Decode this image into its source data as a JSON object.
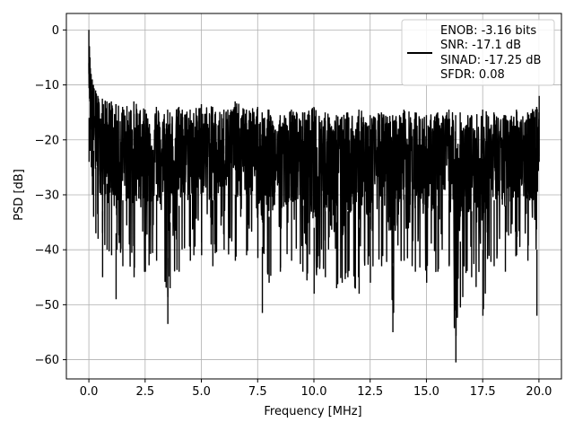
{
  "chart_data": {
    "type": "line",
    "xlabel": "Frequency [MHz]",
    "ylabel": "PSD [dB]",
    "xlim": [
      -1.0,
      21.0
    ],
    "ylim": [
      -63.5,
      3.0
    ],
    "x_ticks": [
      0.0,
      2.5,
      5.0,
      7.5,
      10.0,
      12.5,
      15.0,
      17.5,
      20.0
    ],
    "x_tick_labels": [
      "0.0",
      "2.5",
      "5.0",
      "7.5",
      "10.0",
      "12.5",
      "15.0",
      "17.5",
      "20.0"
    ],
    "y_ticks": [
      0,
      -10,
      -20,
      -30,
      -40,
      -50,
      -60
    ],
    "y_tick_labels": [
      "0",
      "−10",
      "−20",
      "−30",
      "−40",
      "−50",
      "−60"
    ],
    "grid": true,
    "legend_position": "top-right",
    "series": [
      {
        "color": "#000000",
        "description": "Noisy power spectral density trace from 0 to 20 MHz: peak near 0 dB at 0 MHz, dropping quickly to about -10 dB, then a dense noise band mostly between about -15 and -35 dB across the band, with occasional deep dips down to about -60 dB.",
        "x": [
          0.0,
          0.05,
          0.1,
          0.15,
          0.2,
          0.3,
          0.4,
          0.6,
          0.8,
          1.0,
          1.2,
          1.5,
          2.0,
          2.5,
          3.0,
          3.5,
          3.6,
          4.0,
          4.5,
          5.0,
          5.5,
          6.0,
          6.5,
          7.0,
          7.5,
          7.7,
          8.0,
          8.5,
          9.0,
          9.5,
          10.0,
          10.5,
          11.0,
          11.5,
          12.0,
          12.5,
          13.0,
          13.5,
          14.0,
          14.5,
          15.0,
          15.5,
          16.0,
          16.3,
          16.5,
          17.0,
          17.5,
          18.0,
          18.5,
          19.0,
          19.5,
          19.9,
          20.0
        ],
        "y_upper": [
          0.0,
          -5.0,
          -8.0,
          -9.0,
          -10.0,
          -11.0,
          -12.0,
          -12.5,
          -13.0,
          -13.0,
          -13.5,
          -14.0,
          -13.0,
          -14.5,
          -14.0,
          -14.5,
          -15.0,
          -14.0,
          -14.5,
          -13.5,
          -14.0,
          -14.5,
          -13.0,
          -14.5,
          -14.0,
          -15.0,
          -14.5,
          -15.5,
          -14.5,
          -15.0,
          -14.0,
          -15.0,
          -15.5,
          -15.0,
          -14.5,
          -15.5,
          -15.0,
          -15.5,
          -14.5,
          -15.0,
          -15.5,
          -15.0,
          -14.5,
          -15.5,
          -15.0,
          -15.5,
          -14.5,
          -15.0,
          -15.5,
          -14.5,
          -15.0,
          -14.0,
          -15.0
        ],
        "y_lower": [
          -16.0,
          -22.0,
          -25.0,
          -30.0,
          -34.0,
          -37.0,
          -38.0,
          -45.0,
          -40.0,
          -41.0,
          -49.0,
          -43.0,
          -45.0,
          -44.0,
          -42.0,
          -53.5,
          -47.0,
          -44.0,
          -42.0,
          -41.0,
          -43.0,
          -40.0,
          -42.0,
          -41.0,
          -41.5,
          -51.5,
          -46.0,
          -44.0,
          -42.0,
          -44.0,
          -48.0,
          -45.0,
          -47.0,
          -45.0,
          -48.0,
          -46.0,
          -43.0,
          -55.0,
          -42.0,
          -44.0,
          -46.0,
          -44.0,
          -43.0,
          -60.5,
          -50.5,
          -45.0,
          -52.0,
          -43.0,
          -44.0,
          -41.0,
          -42.0,
          -52.0,
          -24.0
        ]
      }
    ],
    "legend": {
      "line_color": "#000000",
      "entries": [
        "ENOB: -3.16 bits",
        "SNR: -17.1 dB",
        "SINAD: -17.25 dB",
        "SFDR: 0.08"
      ]
    }
  }
}
